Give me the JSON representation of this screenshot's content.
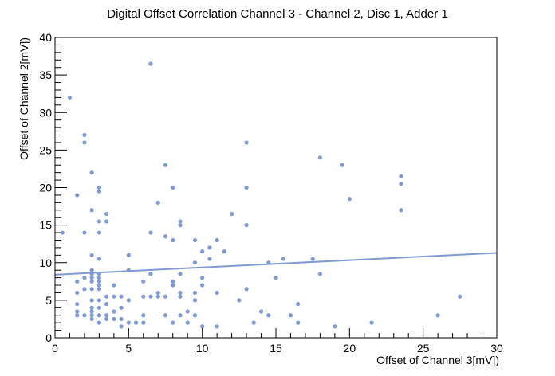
{
  "chart_data": {
    "type": "scatter",
    "title": "Digital Offset Correlation Channel 3 - Channel 2, Disc 1, Adder 1",
    "xlabel": "Offset of Channel 3[mV])",
    "ylabel": "Offset of Channel 2[mV])",
    "xlim": [
      0,
      30
    ],
    "ylim": [
      0,
      40
    ],
    "x_major_ticks": [
      0,
      5,
      10,
      15,
      20,
      25,
      30
    ],
    "y_major_ticks": [
      0,
      5,
      10,
      15,
      20,
      25,
      30,
      35,
      40
    ],
    "grid": false,
    "legend": "none",
    "marker_color": "#7f9ad4",
    "fit_color": "#7f9ad4",
    "fit_line": {
      "x": [
        0,
        30
      ],
      "y": [
        8.4,
        11.3
      ]
    },
    "points": [
      [
        0.5,
        14
      ],
      [
        1,
        32
      ],
      [
        1.5,
        19
      ],
      [
        1.5,
        7.5
      ],
      [
        1.5,
        6
      ],
      [
        1.5,
        4.5
      ],
      [
        1.5,
        3.5
      ],
      [
        1.5,
        3
      ],
      [
        2,
        27
      ],
      [
        2,
        26
      ],
      [
        2,
        14
      ],
      [
        2,
        8
      ],
      [
        2,
        6.5
      ],
      [
        2,
        3
      ],
      [
        2.5,
        22
      ],
      [
        2.5,
        17
      ],
      [
        2.5,
        11
      ],
      [
        2.5,
        9
      ],
      [
        2.5,
        8.5
      ],
      [
        2.5,
        8
      ],
      [
        2.5,
        7.5
      ],
      [
        2.5,
        6.5
      ],
      [
        2.5,
        5
      ],
      [
        2.5,
        4
      ],
      [
        2.5,
        3.5
      ],
      [
        2.5,
        3
      ],
      [
        2.5,
        2.5
      ],
      [
        3,
        20
      ],
      [
        3,
        19.5
      ],
      [
        3,
        15.5
      ],
      [
        3,
        14
      ],
      [
        3,
        10.5
      ],
      [
        3,
        8.5
      ],
      [
        3,
        8
      ],
      [
        3,
        7.5
      ],
      [
        3,
        7
      ],
      [
        3,
        6.5
      ],
      [
        3,
        5
      ],
      [
        3,
        4
      ],
      [
        3,
        3
      ],
      [
        3,
        2
      ],
      [
        3.5,
        16.5
      ],
      [
        3.5,
        15.5
      ],
      [
        3.5,
        5.5
      ],
      [
        3.5,
        4.5
      ],
      [
        3.5,
        3
      ],
      [
        3.5,
        2.5
      ],
      [
        4,
        7
      ],
      [
        4,
        5.5
      ],
      [
        4,
        3.5
      ],
      [
        4,
        2.5
      ],
      [
        4.5,
        5.5
      ],
      [
        4.5,
        4
      ],
      [
        4.5,
        2.5
      ],
      [
        4.5,
        1.5
      ],
      [
        5,
        11
      ],
      [
        5,
        9
      ],
      [
        5,
        5
      ],
      [
        5,
        2
      ],
      [
        5.5,
        2
      ],
      [
        6,
        7.5
      ],
      [
        6,
        5.5
      ],
      [
        6,
        3
      ],
      [
        6,
        2
      ],
      [
        6.5,
        36.5
      ],
      [
        6.5,
        14
      ],
      [
        6.5,
        8.5
      ],
      [
        6.5,
        5.5
      ],
      [
        7,
        18
      ],
      [
        7,
        6
      ],
      [
        7,
        5.5
      ],
      [
        7.5,
        23
      ],
      [
        7.5,
        13.5
      ],
      [
        7.5,
        5.5
      ],
      [
        7.5,
        3
      ],
      [
        8,
        20
      ],
      [
        8,
        13
      ],
      [
        8,
        7.5
      ],
      [
        8,
        7
      ],
      [
        8,
        2
      ],
      [
        8.5,
        15.5
      ],
      [
        8.5,
        15
      ],
      [
        8.5,
        8.5
      ],
      [
        8.5,
        6
      ],
      [
        8.5,
        5.5
      ],
      [
        8.5,
        3
      ],
      [
        9,
        3.5
      ],
      [
        9,
        2
      ],
      [
        9.5,
        13
      ],
      [
        9.5,
        10
      ],
      [
        9.5,
        6
      ],
      [
        9.5,
        5
      ],
      [
        9.5,
        3
      ],
      [
        10,
        11.5
      ],
      [
        10,
        8
      ],
      [
        10,
        7
      ],
      [
        10,
        1.5
      ],
      [
        10.5,
        12
      ],
      [
        10.5,
        10.5
      ],
      [
        11,
        13
      ],
      [
        11,
        6
      ],
      [
        11,
        1.5
      ],
      [
        11.5,
        11.5
      ],
      [
        12,
        16.5
      ],
      [
        12.5,
        5
      ],
      [
        13,
        26
      ],
      [
        13,
        20
      ],
      [
        13,
        15
      ],
      [
        13,
        6.5
      ],
      [
        13.5,
        2
      ],
      [
        14,
        3.5
      ],
      [
        14.5,
        10
      ],
      [
        14.5,
        3
      ],
      [
        15,
        8
      ],
      [
        15.5,
        10.5
      ],
      [
        16,
        3
      ],
      [
        16.5,
        4.5
      ],
      [
        16.5,
        2
      ],
      [
        17.5,
        10.5
      ],
      [
        18,
        24
      ],
      [
        18,
        8.5
      ],
      [
        19,
        1.5
      ],
      [
        19.5,
        23
      ],
      [
        20,
        18.5
      ],
      [
        21.5,
        2
      ],
      [
        23.5,
        21.5
      ],
      [
        23.5,
        20.5
      ],
      [
        23.5,
        17
      ],
      [
        26,
        3
      ],
      [
        27.5,
        5.5
      ]
    ]
  }
}
